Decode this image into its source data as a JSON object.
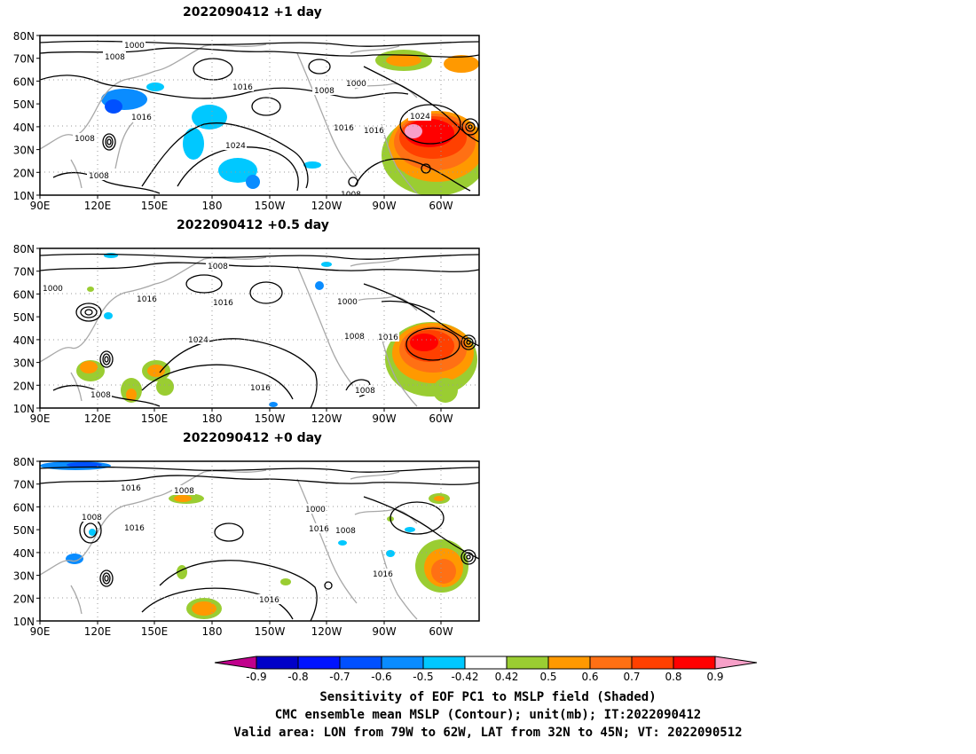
{
  "panels": [
    {
      "title": "2022090412  +1 day",
      "contour_labels": [
        "1000",
        "1008",
        "1008",
        "1016",
        "1008",
        "1008",
        "1024",
        "1008",
        "1000",
        "1016",
        "1016",
        "1016",
        "1024",
        "1008"
      ]
    },
    {
      "title": "2022090412  +0.5 day",
      "contour_labels": [
        "1008",
        "1000",
        "1016",
        "1016",
        "1024",
        "1000",
        "1008",
        "1016",
        "1016",
        "1008",
        "1008"
      ]
    },
    {
      "title": "2022090412  +0 day",
      "contour_labels": [
        "1016",
        "1008",
        "1008",
        "1016",
        "1000",
        "1016",
        "1008",
        "1016",
        "1016"
      ]
    }
  ],
  "axes": {
    "lat_ticks": [
      "80N",
      "70N",
      "60N",
      "50N",
      "40N",
      "30N",
      "20N",
      "10N"
    ],
    "lon_ticks": [
      "90E",
      "120E",
      "150E",
      "180",
      "150W",
      "120W",
      "90W",
      "60W"
    ]
  },
  "colorbar": {
    "tick_labels": [
      "-0.9",
      "-0.8",
      "-0.7",
      "-0.6",
      "-0.5",
      "-0.42",
      "0.42",
      "0.5",
      "0.6",
      "0.7",
      "0.8",
      "0.9"
    ],
    "colors": [
      "#c0008c",
      "#0000c8",
      "#0014ff",
      "#0050ff",
      "#0a8cff",
      "#00c8ff",
      "#ffffff",
      "#9acd32",
      "#ff9900",
      "#ff7014",
      "#ff4000",
      "#ff0000",
      "#f7a0c8"
    ]
  },
  "footer": {
    "line1": "Sensitivity of EOF PC1 to MSLP field (Shaded)",
    "line2": "CMC ensemble mean MSLP (Contour); unit(mb); IT:2022090412",
    "line3": "Valid area: LON from 79W to 62W, LAT from 32N to 45N; VT: 2022090512"
  }
}
